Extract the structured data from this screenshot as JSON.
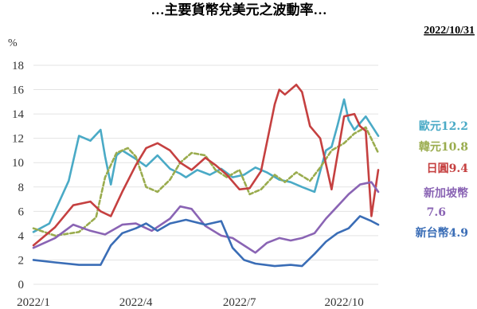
{
  "title": "…主要貨幣兌美元之波動率…",
  "date_stamp": "2022/10/31",
  "chart_data": {
    "type": "line",
    "ylabel": "%",
    "ylim": [
      0,
      18
    ],
    "yticks": [
      0,
      2,
      4,
      6,
      8,
      10,
      12,
      14,
      16,
      18
    ],
    "xlim": [
      "2022-01-01",
      "2022-10-31"
    ],
    "xticks": [
      {
        "date": "2022-01-01",
        "label": "2022/1"
      },
      {
        "date": "2022-04-01",
        "label": "2022/4"
      },
      {
        "date": "2022-07-01",
        "label": "2022/7"
      },
      {
        "date": "2022-10-01",
        "label": "2022/10"
      }
    ],
    "grid": "horizontal",
    "legend_placement": "right",
    "series": [
      {
        "name": "歐元",
        "end_label": "12.2",
        "color": "#4aaac6",
        "dash": "solid",
        "x": [
          "2022-01-01",
          "2022-01-15",
          "2022-02-01",
          "2022-02-10",
          "2022-02-20",
          "2022-03-01",
          "2022-03-05",
          "2022-03-10",
          "2022-03-15",
          "2022-03-20",
          "2022-04-01",
          "2022-04-10",
          "2022-04-20",
          "2022-05-01",
          "2022-05-10",
          "2022-05-15",
          "2022-05-25",
          "2022-06-05",
          "2022-06-15",
          "2022-06-25",
          "2022-07-05",
          "2022-07-15",
          "2022-07-25",
          "2022-08-05",
          "2022-08-15",
          "2022-08-25",
          "2022-09-05",
          "2022-09-15",
          "2022-09-20",
          "2022-09-25",
          "2022-10-01",
          "2022-10-05",
          "2022-10-10",
          "2022-10-20",
          "2022-10-31"
        ],
        "y": [
          4.3,
          5.0,
          8.5,
          12.2,
          11.8,
          12.7,
          10.5,
          8.2,
          10.6,
          11.0,
          10.3,
          9.7,
          10.6,
          9.5,
          9.1,
          8.8,
          9.4,
          9.0,
          9.5,
          8.8,
          9.0,
          9.6,
          9.2,
          8.6,
          8.4,
          8.0,
          7.6,
          11.0,
          11.3,
          13.0,
          15.2,
          13.5,
          12.7,
          13.8,
          12.2
        ]
      },
      {
        "name": "韓元",
        "end_label": "10.8",
        "color": "#9aac4e",
        "dash": "dashed",
        "x": [
          "2022-01-01",
          "2022-01-20",
          "2022-02-10",
          "2022-02-25",
          "2022-03-05",
          "2022-03-15",
          "2022-03-25",
          "2022-04-01",
          "2022-04-10",
          "2022-04-20",
          "2022-05-01",
          "2022-05-10",
          "2022-05-20",
          "2022-06-01",
          "2022-06-10",
          "2022-06-20",
          "2022-07-01",
          "2022-07-10",
          "2022-07-20",
          "2022-08-01",
          "2022-08-10",
          "2022-08-20",
          "2022-09-01",
          "2022-09-10",
          "2022-09-20",
          "2022-10-01",
          "2022-10-10",
          "2022-10-20",
          "2022-10-31"
        ],
        "y": [
          4.6,
          4.0,
          4.3,
          5.5,
          8.8,
          10.8,
          11.2,
          10.5,
          8.0,
          7.6,
          8.6,
          10.0,
          10.8,
          10.6,
          9.4,
          8.8,
          9.4,
          7.4,
          7.8,
          9.0,
          8.4,
          9.2,
          8.5,
          9.6,
          11.0,
          11.6,
          12.4,
          12.9,
          10.8
        ]
      },
      {
        "name": "日圓",
        "end_label": "9.4",
        "color": "#c54040",
        "dash": "solid",
        "x": [
          "2022-01-01",
          "2022-01-20",
          "2022-02-05",
          "2022-02-20",
          "2022-03-01",
          "2022-03-10",
          "2022-03-20",
          "2022-04-01",
          "2022-04-10",
          "2022-04-20",
          "2022-05-01",
          "2022-05-10",
          "2022-05-20",
          "2022-06-01",
          "2022-06-10",
          "2022-06-20",
          "2022-07-01",
          "2022-07-10",
          "2022-07-20",
          "2022-08-01",
          "2022-08-05",
          "2022-08-10",
          "2022-08-20",
          "2022-08-25",
          "2022-09-01",
          "2022-09-10",
          "2022-09-20",
          "2022-10-01",
          "2022-10-10",
          "2022-10-15",
          "2022-10-20",
          "2022-10-25",
          "2022-10-31"
        ],
        "y": [
          3.2,
          4.7,
          6.5,
          6.8,
          6.0,
          5.6,
          7.6,
          9.8,
          11.2,
          11.6,
          11.0,
          10.0,
          9.4,
          10.4,
          9.8,
          9.0,
          7.8,
          7.9,
          9.3,
          14.8,
          16.0,
          15.6,
          16.4,
          15.8,
          13.0,
          12.0,
          7.8,
          13.8,
          14.0,
          13.0,
          12.6,
          5.6,
          9.4
        ]
      },
      {
        "name": "新加坡幣",
        "end_label": "7.6",
        "color": "#8a64b4",
        "dash": "solid",
        "x": [
          "2022-01-01",
          "2022-01-20",
          "2022-02-05",
          "2022-02-20",
          "2022-03-05",
          "2022-03-20",
          "2022-04-01",
          "2022-04-15",
          "2022-05-01",
          "2022-05-10",
          "2022-05-20",
          "2022-06-01",
          "2022-06-15",
          "2022-06-25",
          "2022-07-05",
          "2022-07-15",
          "2022-07-25",
          "2022-08-05",
          "2022-08-15",
          "2022-08-25",
          "2022-09-05",
          "2022-09-15",
          "2022-09-25",
          "2022-10-05",
          "2022-10-15",
          "2022-10-25",
          "2022-10-31"
        ],
        "y": [
          3.0,
          3.8,
          4.9,
          4.4,
          4.1,
          4.9,
          5.0,
          4.4,
          5.4,
          6.4,
          6.2,
          4.8,
          4.0,
          3.8,
          3.2,
          2.6,
          3.4,
          3.8,
          3.6,
          3.8,
          4.2,
          5.4,
          6.4,
          7.4,
          8.2,
          8.4,
          7.6
        ]
      },
      {
        "name": "新台幣",
        "end_label": "4.9",
        "color": "#3a6db6",
        "dash": "solid",
        "x": [
          "2022-01-01",
          "2022-01-20",
          "2022-02-10",
          "2022-03-01",
          "2022-03-10",
          "2022-03-20",
          "2022-04-01",
          "2022-04-10",
          "2022-04-20",
          "2022-05-01",
          "2022-05-15",
          "2022-06-01",
          "2022-06-15",
          "2022-06-25",
          "2022-07-05",
          "2022-07-15",
          "2022-08-01",
          "2022-08-15",
          "2022-08-25",
          "2022-09-05",
          "2022-09-15",
          "2022-09-25",
          "2022-10-05",
          "2022-10-15",
          "2022-10-25",
          "2022-10-31"
        ],
        "y": [
          2.0,
          1.8,
          1.6,
          1.6,
          3.2,
          4.2,
          4.6,
          5.0,
          4.4,
          5.0,
          5.3,
          4.9,
          5.2,
          3.0,
          2.0,
          1.7,
          1.5,
          1.6,
          1.5,
          2.5,
          3.5,
          4.2,
          4.6,
          5.6,
          5.2,
          4.9
        ]
      }
    ]
  }
}
